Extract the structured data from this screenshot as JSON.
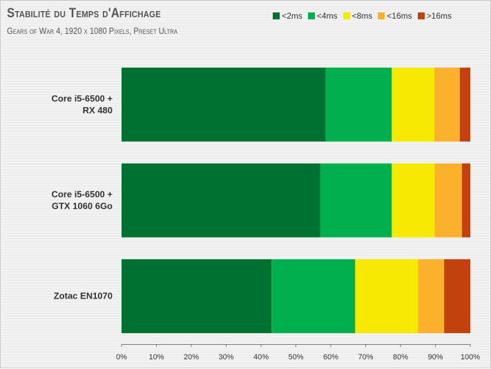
{
  "title": "Stabilité du Temps d'Affichage",
  "subtitle": "Gears of War 4, 1920 x 1080 Pixels, Preset Ultra",
  "chart_data": {
    "type": "bar",
    "orientation": "horizontal",
    "stacked": true,
    "title": "Stabilité du Temps d'Affichage",
    "subtitle": "Gears of War 4, 1920 x 1080 Pixels, Preset Ultra",
    "categories": [
      [
        "Core i5-6500 +",
        "RX 480"
      ],
      [
        "Core i5-6500 +",
        "GTX 1060 6Go"
      ],
      [
        "Zotac EN1070"
      ]
    ],
    "series": [
      {
        "name": "<2ms",
        "color": "#00712f",
        "values": [
          58.5,
          57,
          43
        ]
      },
      {
        "name": "<4ms",
        "color": "#00b04d",
        "values": [
          19,
          20.5,
          24
        ]
      },
      {
        "name": "<8ms",
        "color": "#f5ea00",
        "values": [
          12.2,
          12.3,
          18
        ]
      },
      {
        "name": "<16ms",
        "color": "#fbb12b",
        "values": [
          7.3,
          7.8,
          7.5
        ]
      },
      {
        "name": ">16ms",
        "color": "#c2410c",
        "values": [
          3,
          2.4,
          7.5
        ]
      }
    ],
    "xlim": [
      0,
      100
    ],
    "ticks": [
      "0%",
      "10%",
      "20%",
      "30%",
      "40%",
      "50%",
      "60%",
      "70%",
      "80%",
      "90%",
      "100%"
    ],
    "legend_position": "top-right",
    "grid": false
  }
}
